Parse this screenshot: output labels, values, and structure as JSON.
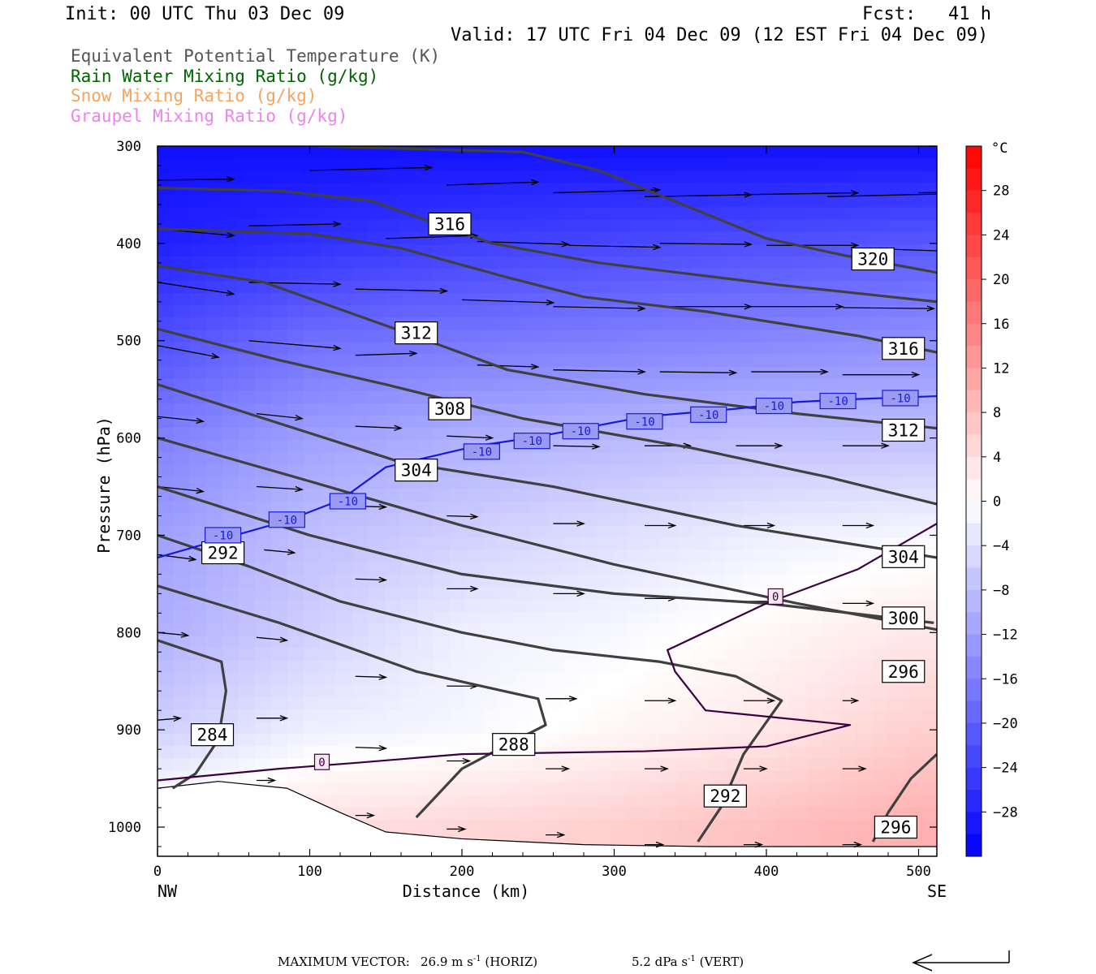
{
  "header": {
    "init": "Init: 00 UTC Thu 03 Dec 09",
    "fcst": "Fcst:   41 h",
    "valid": "Valid: 17 UTC Fri 04 Dec 09 (12 EST Fri 04 Dec 09)"
  },
  "legend": [
    {
      "label": "Equivalent Potential Temperature (K)",
      "color": "#555555"
    },
    {
      "label": "Rain Water Mixing Ratio (g/kg)",
      "color": "#006400"
    },
    {
      "label": "Snow Mixing Ratio (g/kg)",
      "color": "#f4a460"
    },
    {
      "label": "Graupel Mixing Ratio (g/kg)",
      "color": "#ee82ee"
    }
  ],
  "footer": {
    "max_vector_label": "MAXIMUM VECTOR:",
    "horiz_value": "26.9 m s",
    "horiz_unit": "(HORIZ)",
    "vert_value": "5.2 dPa s",
    "vert_unit": "(VERT)",
    "exponent": "-1"
  },
  "chart_data": {
    "type": "heatmap",
    "xlabel": "Distance (km)",
    "ylabel": "Pressure (hPa)",
    "xlim": [
      0,
      512
    ],
    "ylim": [
      1030,
      300
    ],
    "x_ticks": [
      0,
      100,
      200,
      300,
      400,
      500
    ],
    "y_ticks": [
      300,
      400,
      500,
      600,
      700,
      800,
      900,
      1000
    ],
    "x_end_labels": {
      "left": "NW",
      "right": "SE"
    },
    "colorbar": {
      "unit": "°C",
      "ticks": [
        28,
        24,
        20,
        16,
        12,
        8,
        4,
        0,
        -4,
        -8,
        -12,
        -16,
        -20,
        -24,
        -28
      ],
      "range": [
        -32,
        32
      ]
    },
    "temperature_field_c": {
      "pressures": [
        300,
        400,
        500,
        600,
        700,
        800,
        900,
        1000
      ],
      "x": [
        0,
        100,
        200,
        300,
        400,
        500
      ],
      "values": [
        [
          -30,
          -30,
          -30,
          -30,
          -30,
          -30
        ],
        [
          -28,
          -26,
          -24,
          -23,
          -22,
          -21
        ],
        [
          -22,
          -18,
          -17,
          -16,
          -15,
          -14
        ],
        [
          -16,
          -12,
          -10,
          -9,
          -8,
          -8
        ],
        [
          -12,
          -8,
          -6,
          -4,
          -2,
          -1
        ],
        [
          -10,
          -6,
          -2,
          -1,
          1,
          3
        ],
        [
          -6,
          -2,
          -1,
          1,
          3,
          6
        ],
        [
          2,
          4,
          5,
          6,
          8,
          10
        ]
      ]
    },
    "theta_e_contours": [
      {
        "value": "284",
        "points": [
          [
            0,
            808
          ],
          [
            42,
            830
          ],
          [
            45,
            860
          ],
          [
            40,
            910
          ],
          [
            25,
            945
          ],
          [
            10,
            960
          ]
        ]
      },
      {
        "value": "288",
        "points": [
          [
            0,
            752
          ],
          [
            80,
            790
          ],
          [
            170,
            840
          ],
          [
            250,
            868
          ],
          [
            255,
            895
          ],
          [
            230,
            915
          ],
          [
            200,
            940
          ],
          [
            170,
            990
          ]
        ]
      },
      {
        "value": "292",
        "points": [
          [
            0,
            700
          ],
          [
            60,
            732
          ],
          [
            120,
            768
          ],
          [
            200,
            800
          ],
          [
            260,
            818
          ],
          [
            330,
            830
          ],
          [
            380,
            845
          ],
          [
            410,
            870
          ],
          [
            385,
            925
          ],
          [
            370,
            980
          ],
          [
            355,
            1015
          ]
        ]
      },
      {
        "value": "292",
        "points": [
          [
            0,
            650
          ],
          [
            100,
            700
          ],
          [
            200,
            740
          ],
          [
            300,
            760
          ],
          [
            400,
            770
          ],
          [
            510,
            790
          ]
        ]
      },
      {
        "value": "296",
        "points": [
          [
            0,
            600
          ],
          [
            90,
            640
          ],
          [
            200,
            690
          ],
          [
            300,
            730
          ],
          [
            420,
            770
          ],
          [
            512,
            797
          ]
        ]
      },
      {
        "value": "296",
        "points": [
          [
            512,
            925
          ],
          [
            495,
            950
          ],
          [
            480,
            985
          ],
          [
            470,
            1015
          ]
        ]
      },
      {
        "value": "300",
        "points": [
          [
            0,
            545
          ],
          [
            90,
            590
          ],
          [
            160,
            625
          ],
          [
            260,
            650
          ],
          [
            380,
            690
          ],
          [
            512,
            723
          ]
        ]
      },
      {
        "value": "304",
        "points": [
          [
            0,
            488
          ],
          [
            80,
            520
          ],
          [
            150,
            545
          ],
          [
            240,
            580
          ],
          [
            350,
            610
          ],
          [
            440,
            640
          ],
          [
            512,
            668
          ]
        ]
      },
      {
        "value": "308",
        "points": [
          [
            0,
            423
          ],
          [
            70,
            440
          ],
          [
            160,
            490
          ],
          [
            230,
            530
          ],
          [
            320,
            555
          ],
          [
            420,
            575
          ],
          [
            512,
            590
          ]
        ]
      },
      {
        "value": "312",
        "points": [
          [
            0,
            385
          ],
          [
            100,
            390
          ],
          [
            160,
            405
          ],
          [
            230,
            435
          ],
          [
            280,
            455
          ],
          [
            360,
            470
          ],
          [
            460,
            495
          ],
          [
            512,
            512
          ]
        ]
      },
      {
        "value": "316",
        "points": [
          [
            0,
            343
          ],
          [
            80,
            346
          ],
          [
            140,
            356
          ],
          [
            180,
            378
          ],
          [
            220,
            400
          ],
          [
            290,
            420
          ],
          [
            410,
            443
          ],
          [
            512,
            460
          ]
        ]
      },
      {
        "value": "320",
        "points": [
          [
            105,
            300
          ],
          [
            240,
            306
          ],
          [
            290,
            325
          ],
          [
            400,
            395
          ],
          [
            450,
            412
          ],
          [
            512,
            430
          ]
        ]
      }
    ],
    "theta_e_labels": [
      {
        "text": "316",
        "x": 192,
        "p": 380
      },
      {
        "text": "320",
        "x": 470,
        "p": 416
      },
      {
        "text": "312",
        "x": 170,
        "p": 492
      },
      {
        "text": "316",
        "x": 490,
        "p": 508
      },
      {
        "text": "308",
        "x": 192,
        "p": 570
      },
      {
        "text": "312",
        "x": 490,
        "p": 592
      },
      {
        "text": "304",
        "x": 170,
        "p": 633
      },
      {
        "text": "304",
        "x": 490,
        "p": 722
      },
      {
        "text": "292",
        "x": 43,
        "p": 718
      },
      {
        "text": "300",
        "x": 490,
        "p": 785
      },
      {
        "text": "296",
        "x": 490,
        "p": 840
      },
      {
        "text": "284",
        "x": 36,
        "p": 905
      },
      {
        "text": "288",
        "x": 234,
        "p": 915
      },
      {
        "text": "292",
        "x": 373,
        "p": 968
      },
      {
        "text": "296",
        "x": 485,
        "p": 1000
      }
    ],
    "isotherm_minus10": {
      "value": "-10",
      "points": [
        [
          0,
          723
        ],
        [
          40,
          705
        ],
        [
          85,
          685
        ],
        [
          120,
          664
        ],
        [
          150,
          630
        ],
        [
          210,
          608
        ],
        [
          245,
          600
        ],
        [
          280,
          590
        ],
        [
          320,
          578
        ],
        [
          380,
          570
        ],
        [
          420,
          563
        ],
        [
          460,
          560
        ],
        [
          512,
          557
        ]
      ],
      "labels": [
        [
          43,
          700
        ],
        [
          85,
          684
        ],
        [
          125,
          665
        ],
        [
          213,
          614
        ],
        [
          246,
          603
        ],
        [
          278,
          593
        ],
        [
          320,
          583
        ],
        [
          362,
          576
        ],
        [
          405,
          567
        ],
        [
          447,
          562
        ],
        [
          488,
          559
        ]
      ]
    },
    "isotherm_zero": {
      "value": "0",
      "points": [
        [
          0,
          952
        ],
        [
          80,
          940
        ],
        [
          130,
          934
        ],
        [
          200,
          925
        ],
        [
          320,
          922
        ],
        [
          400,
          917
        ],
        [
          455,
          895
        ],
        [
          360,
          880
        ],
        [
          340,
          840
        ],
        [
          335,
          818
        ],
        [
          400,
          770
        ],
        [
          460,
          735
        ],
        [
          512,
          688
        ]
      ],
      "labels": [
        [
          108,
          933
        ],
        [
          406,
          763
        ]
      ]
    },
    "terrain": [
      [
        0,
        960
      ],
      [
        40,
        953
      ],
      [
        85,
        960
      ],
      [
        120,
        985
      ],
      [
        150,
        1005
      ],
      [
        200,
        1012
      ],
      [
        280,
        1018
      ],
      [
        360,
        1020
      ],
      [
        512,
        1020
      ]
    ],
    "wind_vectors": [
      {
        "x": 0,
        "p": 335,
        "dx": 50,
        "dp": -1
      },
      {
        "x": 100,
        "p": 325,
        "dx": 80,
        "dp": -3
      },
      {
        "x": 190,
        "p": 340,
        "dx": 60,
        "dp": -3
      },
      {
        "x": 260,
        "p": 348,
        "dx": 70,
        "dp": -3
      },
      {
        "x": 320,
        "p": 352,
        "dx": 70,
        "dp": -2
      },
      {
        "x": 380,
        "p": 350,
        "dx": 80,
        "dp": -2
      },
      {
        "x": 440,
        "p": 352,
        "dx": 80,
        "dp": -3
      },
      {
        "x": 500,
        "p": 348,
        "dx": 70,
        "dp": -2
      },
      {
        "x": 0,
        "p": 385,
        "dx": 50,
        "dp": 7
      },
      {
        "x": 60,
        "p": 382,
        "dx": 60,
        "dp": -2
      },
      {
        "x": 150,
        "p": 395,
        "dx": 60,
        "dp": -3
      },
      {
        "x": 210,
        "p": 398,
        "dx": 60,
        "dp": 3
      },
      {
        "x": 270,
        "p": 402,
        "dx": 60,
        "dp": 2
      },
      {
        "x": 330,
        "p": 400,
        "dx": 60,
        "dp": 1
      },
      {
        "x": 400,
        "p": 402,
        "dx": 60,
        "dp": 0
      },
      {
        "x": 460,
        "p": 405,
        "dx": 60,
        "dp": 3
      },
      {
        "x": 0,
        "p": 440,
        "dx": 50,
        "dp": 12
      },
      {
        "x": 60,
        "p": 440,
        "dx": 60,
        "dp": 2
      },
      {
        "x": 130,
        "p": 447,
        "dx": 60,
        "dp": 2
      },
      {
        "x": 200,
        "p": 458,
        "dx": 60,
        "dp": 3
      },
      {
        "x": 260,
        "p": 465,
        "dx": 60,
        "dp": 2
      },
      {
        "x": 330,
        "p": 465,
        "dx": 60,
        "dp": 0
      },
      {
        "x": 390,
        "p": 465,
        "dx": 60,
        "dp": 0
      },
      {
        "x": 450,
        "p": 466,
        "dx": 60,
        "dp": 1
      },
      {
        "x": 0,
        "p": 505,
        "dx": 40,
        "dp": 12
      },
      {
        "x": 60,
        "p": 500,
        "dx": 60,
        "dp": 8
      },
      {
        "x": 130,
        "p": 515,
        "dx": 40,
        "dp": -2
      },
      {
        "x": 210,
        "p": 525,
        "dx": 40,
        "dp": 2
      },
      {
        "x": 260,
        "p": 530,
        "dx": 60,
        "dp": 2
      },
      {
        "x": 330,
        "p": 532,
        "dx": 50,
        "dp": 1
      },
      {
        "x": 390,
        "p": 532,
        "dx": 50,
        "dp": 0
      },
      {
        "x": 450,
        "p": 535,
        "dx": 50,
        "dp": 0
      },
      {
        "x": 0,
        "p": 578,
        "dx": 30,
        "dp": 5
      },
      {
        "x": 65,
        "p": 575,
        "dx": 30,
        "dp": 5
      },
      {
        "x": 130,
        "p": 588,
        "dx": 30,
        "dp": 2
      },
      {
        "x": 190,
        "p": 598,
        "dx": 30,
        "dp": 2
      },
      {
        "x": 260,
        "p": 608,
        "dx": 30,
        "dp": 1
      },
      {
        "x": 320,
        "p": 608,
        "dx": 30,
        "dp": 0
      },
      {
        "x": 380,
        "p": 608,
        "dx": 30,
        "dp": 0
      },
      {
        "x": 450,
        "p": 608,
        "dx": 30,
        "dp": 0
      },
      {
        "x": 0,
        "p": 650,
        "dx": 30,
        "dp": 5
      },
      {
        "x": 65,
        "p": 650,
        "dx": 30,
        "dp": 3
      },
      {
        "x": 130,
        "p": 670,
        "dx": 20,
        "dp": 1
      },
      {
        "x": 190,
        "p": 680,
        "dx": 20,
        "dp": 1
      },
      {
        "x": 260,
        "p": 688,
        "dx": 20,
        "dp": 0
      },
      {
        "x": 320,
        "p": 690,
        "dx": 20,
        "dp": 0
      },
      {
        "x": 385,
        "p": 690,
        "dx": 20,
        "dp": 0
      },
      {
        "x": 450,
        "p": 690,
        "dx": 20,
        "dp": 0
      },
      {
        "x": 0,
        "p": 720,
        "dx": 25,
        "dp": 5
      },
      {
        "x": 70,
        "p": 715,
        "dx": 20,
        "dp": 3
      },
      {
        "x": 130,
        "p": 745,
        "dx": 20,
        "dp": 1
      },
      {
        "x": 190,
        "p": 755,
        "dx": 20,
        "dp": 0
      },
      {
        "x": 260,
        "p": 760,
        "dx": 20,
        "dp": 0
      },
      {
        "x": 320,
        "p": 765,
        "dx": 20,
        "dp": 0
      },
      {
        "x": 385,
        "p": 768,
        "dx": 20,
        "dp": 0
      },
      {
        "x": 450,
        "p": 770,
        "dx": 20,
        "dp": 0
      },
      {
        "x": 0,
        "p": 800,
        "dx": 20,
        "dp": 3
      },
      {
        "x": 65,
        "p": 805,
        "dx": 20,
        "dp": 3
      },
      {
        "x": 130,
        "p": 845,
        "dx": 20,
        "dp": 1
      },
      {
        "x": 190,
        "p": 855,
        "dx": 20,
        "dp": 0
      },
      {
        "x": 255,
        "p": 868,
        "dx": 20,
        "dp": 0
      },
      {
        "x": 320,
        "p": 870,
        "dx": 20,
        "dp": 0
      },
      {
        "x": 385,
        "p": 870,
        "dx": 20,
        "dp": 0
      },
      {
        "x": 450,
        "p": 870,
        "dx": 10,
        "dp": 0
      },
      {
        "x": 0,
        "p": 890,
        "dx": 15,
        "dp": -2
      },
      {
        "x": 65,
        "p": 888,
        "dx": 20,
        "dp": 0
      },
      {
        "x": 130,
        "p": 918,
        "dx": 20,
        "dp": 1
      },
      {
        "x": 190,
        "p": 932,
        "dx": 15,
        "dp": 0
      },
      {
        "x": 255,
        "p": 940,
        "dx": 15,
        "dp": 0
      },
      {
        "x": 320,
        "p": 940,
        "dx": 15,
        "dp": 0
      },
      {
        "x": 385,
        "p": 940,
        "dx": 15,
        "dp": 0
      },
      {
        "x": 450,
        "p": 940,
        "dx": 15,
        "dp": 0
      },
      {
        "x": 65,
        "p": 952,
        "dx": 12,
        "dp": 0
      },
      {
        "x": 130,
        "p": 988,
        "dx": 12,
        "dp": 0
      },
      {
        "x": 190,
        "p": 1002,
        "dx": 12,
        "dp": 0
      },
      {
        "x": 255,
        "p": 1008,
        "dx": 12,
        "dp": 0
      },
      {
        "x": 320,
        "p": 1018,
        "dx": 12,
        "dp": 0
      },
      {
        "x": 385,
        "p": 1018,
        "dx": 12,
        "dp": 0
      },
      {
        "x": 450,
        "p": 1018,
        "dx": 12,
        "dp": 0
      }
    ]
  }
}
